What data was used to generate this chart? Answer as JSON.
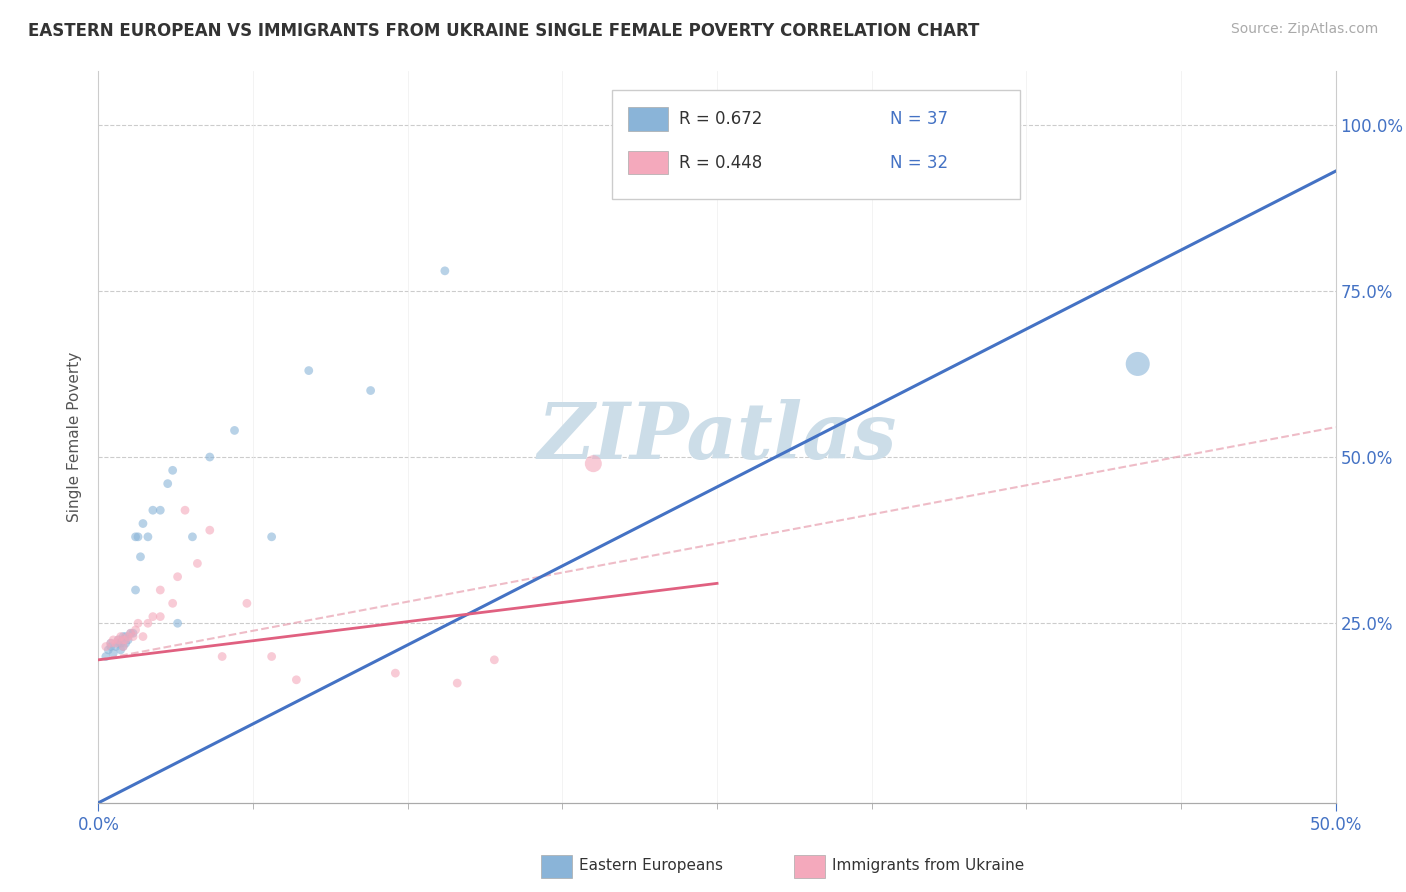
{
  "title": "EASTERN EUROPEAN VS IMMIGRANTS FROM UKRAINE SINGLE FEMALE POVERTY CORRELATION CHART",
  "source": "Source: ZipAtlas.com",
  "ylabel": "Single Female Poverty",
  "xlim": [
    0.0,
    0.5
  ],
  "ylim": [
    -0.02,
    1.08
  ],
  "xtick_labels": [
    "0.0%",
    "50.0%"
  ],
  "ytick_labels": [
    "25.0%",
    "50.0%",
    "75.0%",
    "100.0%"
  ],
  "ytick_positions": [
    0.25,
    0.5,
    0.75,
    1.0
  ],
  "legend_r1": "R = 0.672",
  "legend_n1": "N = 37",
  "legend_r2": "R = 0.448",
  "legend_n2": "N = 32",
  "blue_color": "#8ab4d8",
  "pink_color": "#f4a9bc",
  "blue_line_color": "#4472c4",
  "pink_line_color": "#e06080",
  "pink_dash_color": "#e8a0b0",
  "watermark_color": "#ccdde8",
  "blue_line_intercept": -0.02,
  "blue_line_slope": 1.9,
  "pink_line_intercept": 0.195,
  "pink_line_slope": 0.46,
  "pink_dash_intercept": 0.195,
  "pink_dash_slope": 0.7,
  "blue_scatter_x": [
    0.003,
    0.004,
    0.005,
    0.005,
    0.006,
    0.007,
    0.008,
    0.008,
    0.009,
    0.009,
    0.01,
    0.01,
    0.01,
    0.011,
    0.011,
    0.012,
    0.013,
    0.014,
    0.015,
    0.015,
    0.016,
    0.017,
    0.018,
    0.02,
    0.022,
    0.025,
    0.028,
    0.03,
    0.032,
    0.038,
    0.045,
    0.055,
    0.07,
    0.085,
    0.11,
    0.14,
    0.42
  ],
  "blue_scatter_y": [
    0.2,
    0.21,
    0.215,
    0.22,
    0.205,
    0.215,
    0.22,
    0.225,
    0.21,
    0.22,
    0.215,
    0.225,
    0.23,
    0.22,
    0.23,
    0.225,
    0.235,
    0.235,
    0.3,
    0.38,
    0.38,
    0.35,
    0.4,
    0.38,
    0.42,
    0.42,
    0.46,
    0.48,
    0.25,
    0.38,
    0.5,
    0.54,
    0.38,
    0.63,
    0.6,
    0.78,
    0.64
  ],
  "blue_scatter_sizes": [
    40,
    40,
    40,
    40,
    40,
    40,
    40,
    40,
    40,
    40,
    40,
    40,
    40,
    40,
    40,
    40,
    40,
    40,
    40,
    40,
    40,
    40,
    40,
    40,
    40,
    40,
    40,
    40,
    40,
    40,
    40,
    40,
    40,
    40,
    40,
    40,
    300
  ],
  "pink_scatter_x": [
    0.003,
    0.005,
    0.006,
    0.007,
    0.008,
    0.009,
    0.01,
    0.01,
    0.011,
    0.012,
    0.013,
    0.014,
    0.015,
    0.016,
    0.018,
    0.02,
    0.022,
    0.025,
    0.025,
    0.03,
    0.032,
    0.035,
    0.04,
    0.045,
    0.05,
    0.06,
    0.07,
    0.08,
    0.12,
    0.145,
    0.16,
    0.2
  ],
  "pink_scatter_y": [
    0.215,
    0.22,
    0.225,
    0.22,
    0.225,
    0.23,
    0.215,
    0.225,
    0.225,
    0.23,
    0.235,
    0.23,
    0.24,
    0.25,
    0.23,
    0.25,
    0.26,
    0.26,
    0.3,
    0.28,
    0.32,
    0.42,
    0.34,
    0.39,
    0.2,
    0.28,
    0.2,
    0.165,
    0.175,
    0.16,
    0.195,
    0.49
  ],
  "pink_scatter_sizes": [
    40,
    40,
    40,
    40,
    40,
    40,
    40,
    40,
    40,
    40,
    40,
    40,
    40,
    40,
    40,
    40,
    40,
    40,
    40,
    40,
    40,
    40,
    40,
    40,
    40,
    40,
    40,
    40,
    40,
    40,
    40,
    150
  ]
}
